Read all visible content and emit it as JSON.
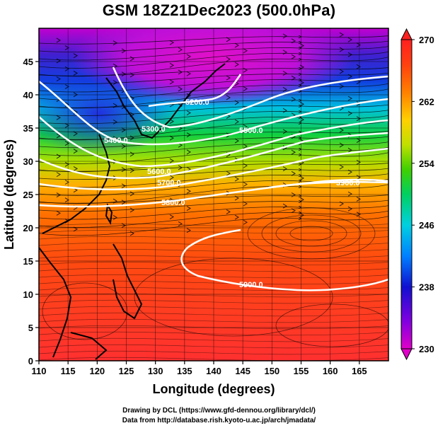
{
  "title": "GSM 18Z21Dec2023 (500.0hPa)",
  "x_axis": {
    "label": "Longitude (degrees)",
    "range": [
      110,
      170
    ],
    "ticks": [
      110,
      115,
      120,
      125,
      130,
      135,
      140,
      145,
      150,
      155,
      160,
      165
    ]
  },
  "y_axis": {
    "label": "Latitude (degrees)",
    "range": [
      0,
      50
    ],
    "ticks": [
      0,
      5,
      10,
      15,
      20,
      25,
      30,
      35,
      40,
      45
    ]
  },
  "colorbar": {
    "range": [
      230,
      270
    ],
    "ticks": [
      230,
      238,
      246,
      254,
      262,
      270
    ],
    "colors": [
      "#e000c8",
      "#8000e0",
      "#1010d0",
      "#0080ff",
      "#00d0e0",
      "#00d060",
      "#40d000",
      "#c0e000",
      "#ffd000",
      "#ff8000",
      "#ff4010",
      "#ff2020"
    ]
  },
  "contours": [
    {
      "label": "5200.0"
    },
    {
      "label": "5300.0"
    },
    {
      "label": "5400.0"
    },
    {
      "label": "5500.0"
    },
    {
      "label": "5600.0"
    },
    {
      "label": "5700.0"
    },
    {
      "label": "5800.0"
    },
    {
      "label": "5900.0"
    },
    {
      "label": "5900.0"
    }
  ],
  "credits": [
    "Drawing by DCL (https://www.gfd-dennou.org/library/dcl/)",
    "Data from http://database.rish.kyoto-u.ac.jp/arch/jmadata/"
  ]
}
